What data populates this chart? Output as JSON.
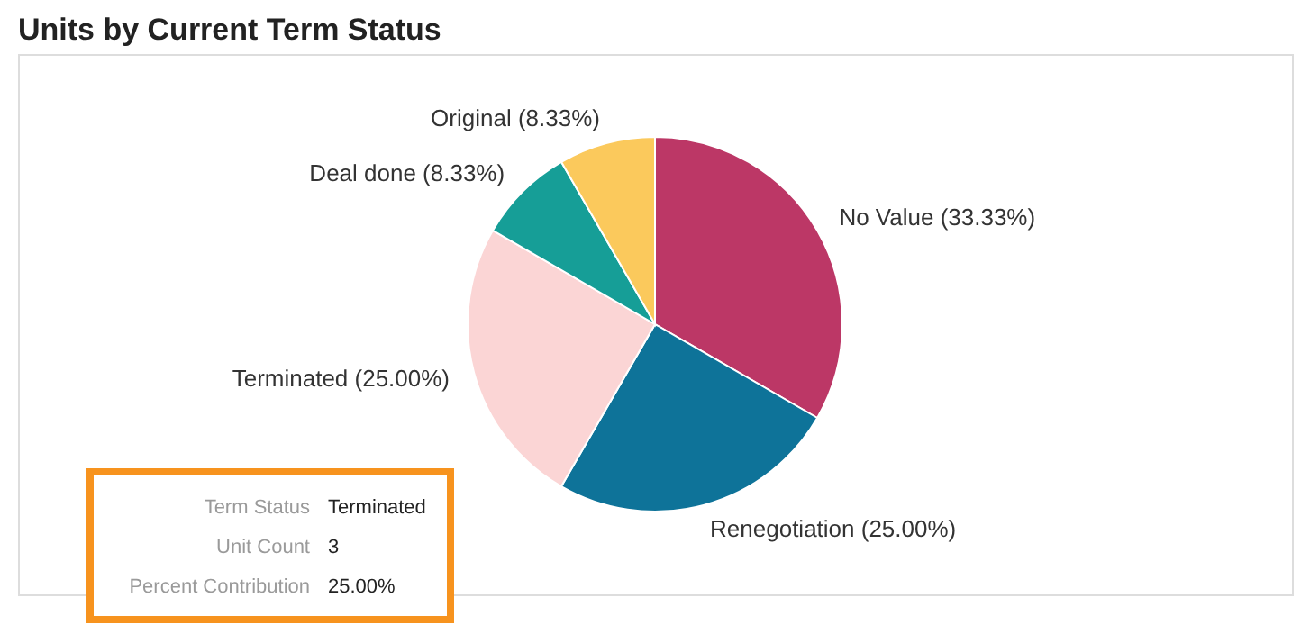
{
  "chart_data": {
    "type": "pie",
    "title": "Units by Current Term Status",
    "categories": [
      "No Value",
      "Renegotiation",
      "Terminated",
      "Deal done",
      "Original"
    ],
    "values": [
      33.33,
      25.0,
      25.0,
      8.33,
      8.33
    ],
    "colors": [
      "#bc3766",
      "#0e7399",
      "#fbd5d5",
      "#169e97",
      "#fbc95c"
    ],
    "value_labels": [
      "(33.33%)",
      "(25.00%)",
      "(25.00%)",
      "(8.33%)",
      "(8.33%)"
    ],
    "legend": false,
    "annotations": [
      "Term Status",
      "Terminated",
      "Unit Count",
      "3",
      "Percent Contribution",
      "25.00%"
    ]
  }
}
